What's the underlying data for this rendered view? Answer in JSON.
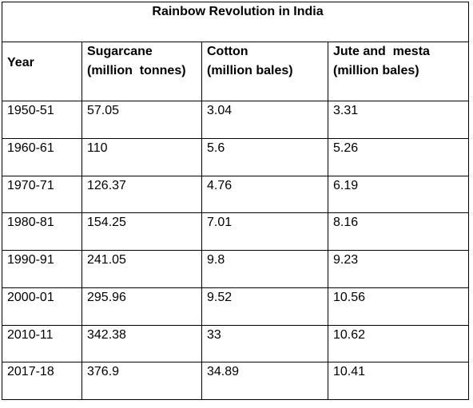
{
  "title": "Rainbow Revolution in India",
  "columns": {
    "year": "Year",
    "sugarcane": [
      "Sugarcane",
      "(million  tonnes)"
    ],
    "cotton": [
      "Cotton",
      "(million bales)"
    ],
    "jute": [
      "Jute and  mesta",
      "(million bales)"
    ]
  },
  "rows": [
    {
      "year": "1950-51",
      "sugarcane": "57.05",
      "cotton": "3.04",
      "jute": "3.31"
    },
    {
      "year": "1960-61",
      "sugarcane": "110",
      "cotton": "5.6",
      "jute": "5.26"
    },
    {
      "year": "1970-71",
      "sugarcane": "126.37",
      "cotton": "4.76",
      "jute": "6.19"
    },
    {
      "year": "1980-81",
      "sugarcane": "154.25",
      "cotton": "7.01",
      "jute": "8.16"
    },
    {
      "year": "1990-91",
      "sugarcane": "241.05",
      "cotton": "9.8",
      "jute": "9.23"
    },
    {
      "year": "2000-01",
      "sugarcane": "295.96",
      "cotton": "9.52",
      "jute": "10.56"
    },
    {
      "year": "2010-11",
      "sugarcane": "342.38",
      "cotton": "33",
      "jute": "10.62"
    },
    {
      "year": "2017-18",
      "sugarcane": "376.9",
      "cotton": "34.89",
      "jute": "10.41"
    }
  ]
}
